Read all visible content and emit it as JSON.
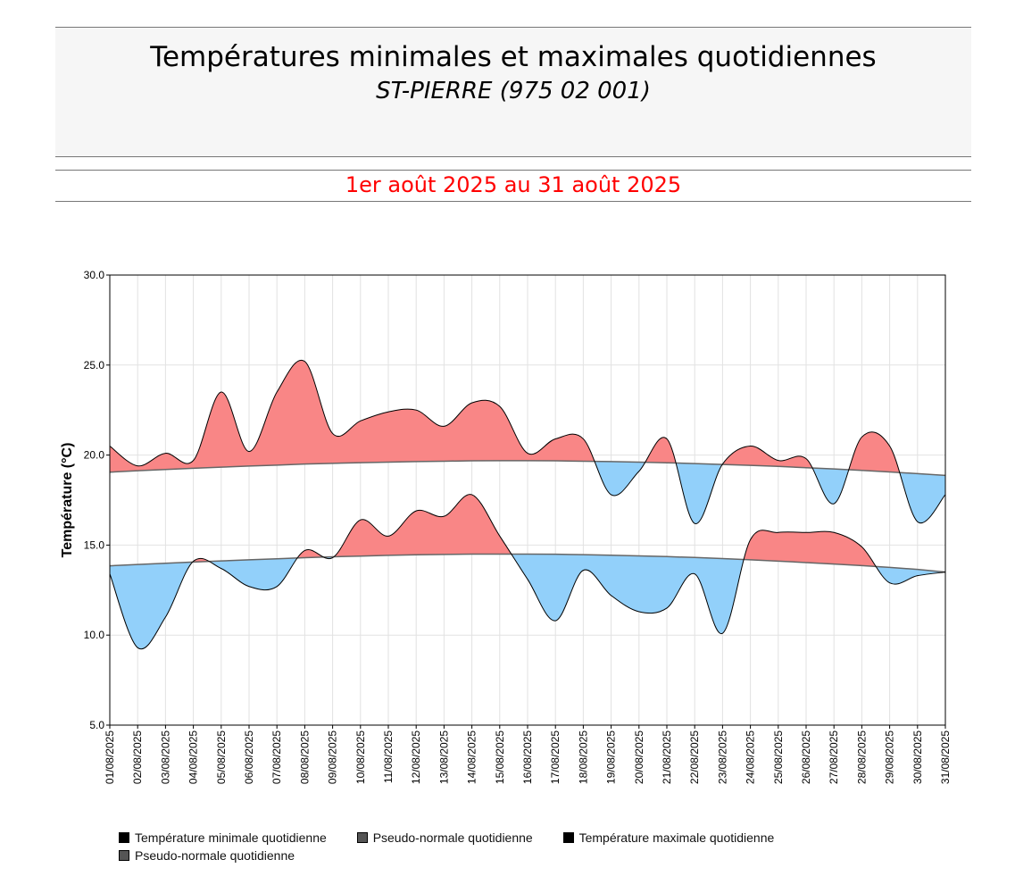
{
  "header": {
    "title": "Températures minimales et maximales quotidiennes",
    "station": "ST-PIERRE (975 02 001)",
    "period": "1er août 2025 au 31 août 2025"
  },
  "colors": {
    "above": "#f98686",
    "below": "#92d0fa",
    "normal_line": "#666666",
    "obs_line": "#000000"
  },
  "chart_data": {
    "type": "area",
    "ylabel": "Température (°C)",
    "ylim": [
      5,
      30
    ],
    "yticks": [
      "5.0",
      "10.0",
      "15.0",
      "20.0",
      "25.0",
      "30.0"
    ],
    "grid": true,
    "legend_position": "bottom",
    "categories": [
      "01/08/2025",
      "02/08/2025",
      "03/08/2025",
      "04/08/2025",
      "05/08/2025",
      "06/08/2025",
      "07/08/2025",
      "08/08/2025",
      "09/08/2025",
      "10/08/2025",
      "11/08/2025",
      "12/08/2025",
      "13/08/2025",
      "14/08/2025",
      "15/08/2025",
      "16/08/2025",
      "17/08/2025",
      "18/08/2025",
      "19/08/2025",
      "20/08/2025",
      "21/08/2025",
      "22/08/2025",
      "23/08/2025",
      "24/08/2025",
      "25/08/2025",
      "26/08/2025",
      "27/08/2025",
      "28/08/2025",
      "29/08/2025",
      "30/08/2025",
      "31/08/2025"
    ],
    "series": [
      {
        "name": "Température minimale quotidienne",
        "values": [
          13.4,
          9.3,
          11.0,
          14.1,
          13.7,
          12.7,
          12.7,
          14.7,
          14.3,
          16.4,
          15.5,
          16.9,
          16.6,
          17.8,
          15.5,
          13.1,
          10.8,
          13.6,
          12.2,
          11.3,
          11.5,
          13.4,
          10.1,
          15.3,
          15.7,
          15.7,
          15.7,
          14.9,
          12.9,
          13.3,
          13.5
        ]
      },
      {
        "name": "Pseudo-normale quotidienne",
        "values": [
          13.85,
          13.92,
          13.99,
          14.06,
          14.12,
          14.18,
          14.24,
          14.3,
          14.35,
          14.39,
          14.43,
          14.46,
          14.48,
          14.5,
          14.5,
          14.5,
          14.49,
          14.47,
          14.44,
          14.4,
          14.36,
          14.31,
          14.25,
          14.18,
          14.11,
          14.03,
          13.95,
          13.86,
          13.76,
          13.65,
          13.5
        ]
      },
      {
        "name": "Température maximale quotidienne",
        "values": [
          20.5,
          19.4,
          20.1,
          19.7,
          23.5,
          20.2,
          23.5,
          25.2,
          21.2,
          21.9,
          22.4,
          22.5,
          21.6,
          22.9,
          22.7,
          20.1,
          20.9,
          20.9,
          17.8,
          19.1,
          20.9,
          16.2,
          19.5,
          20.5,
          19.7,
          19.8,
          17.3,
          21.0,
          20.5,
          16.3,
          17.8
        ]
      },
      {
        "name": "Pseudo-normale quotidienne",
        "values": [
          19.05,
          19.13,
          19.2,
          19.27,
          19.33,
          19.39,
          19.44,
          19.5,
          19.54,
          19.58,
          19.61,
          19.64,
          19.66,
          19.68,
          19.69,
          19.69,
          19.68,
          19.66,
          19.64,
          19.61,
          19.57,
          19.53,
          19.48,
          19.43,
          19.37,
          19.3,
          19.23,
          19.15,
          19.06,
          18.97,
          18.87
        ]
      }
    ]
  },
  "legend": {
    "items": [
      {
        "label": "Température minimale quotidienne",
        "color": "#000000"
      },
      {
        "label": "Pseudo-normale quotidienne",
        "color": "#555555"
      },
      {
        "label": "Température maximale quotidienne",
        "color": "#000000"
      },
      {
        "label": "Pseudo-normale quotidienne",
        "color": "#555555"
      }
    ]
  }
}
